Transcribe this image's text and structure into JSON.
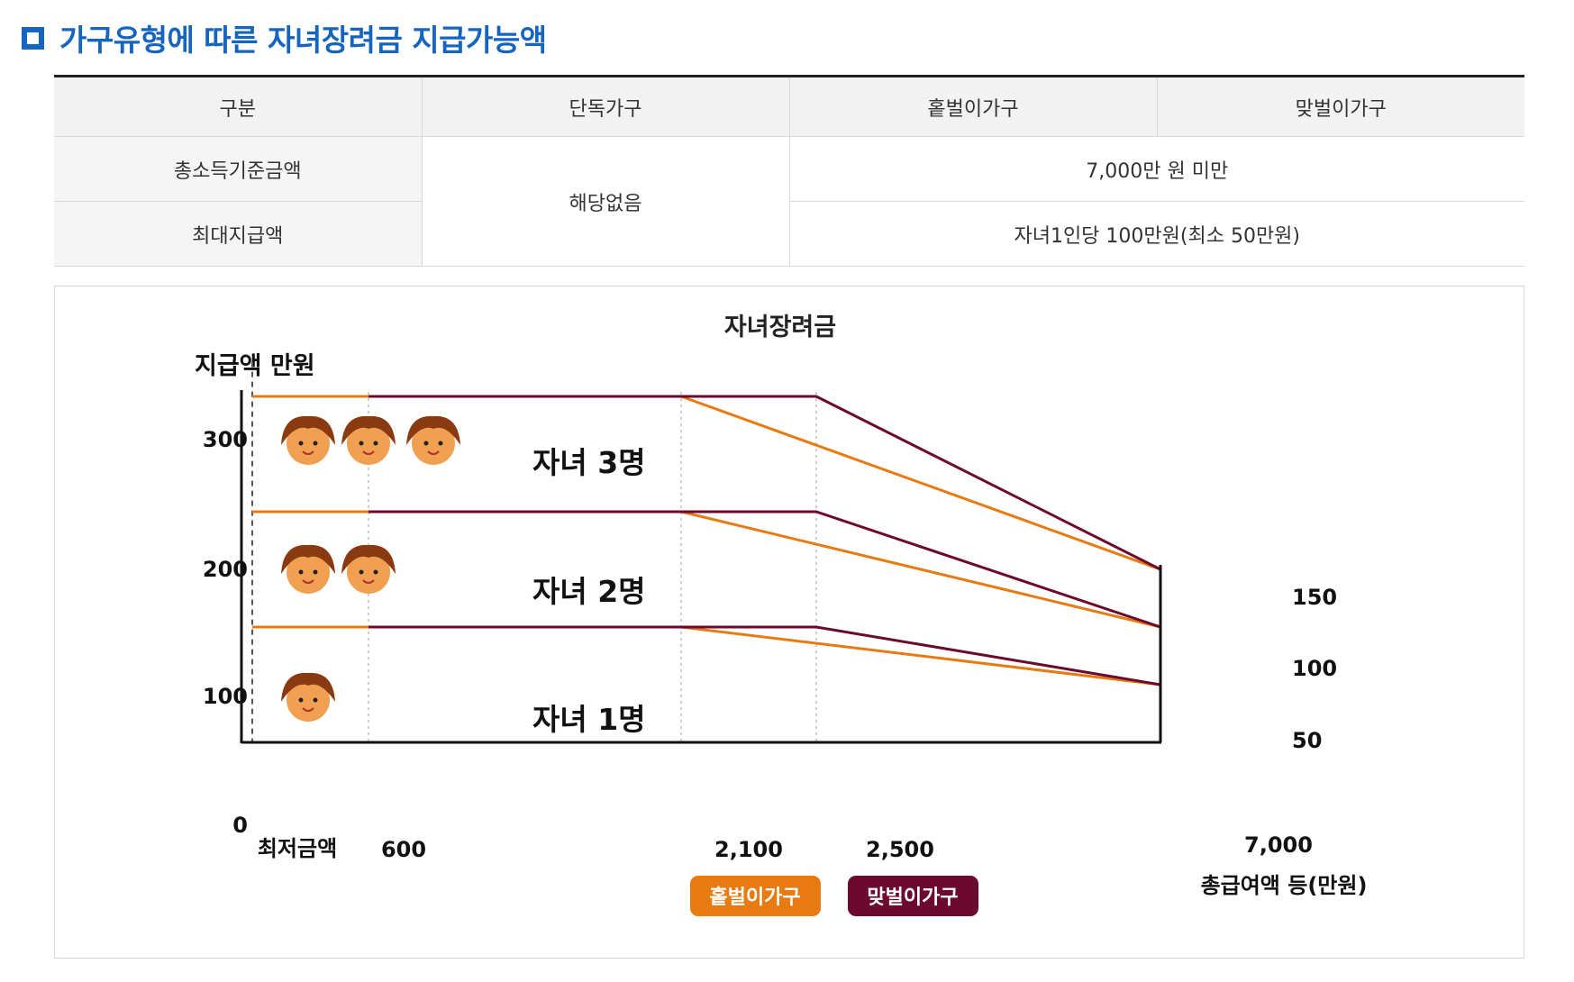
{
  "heading": {
    "title": "가구유형에 따른 자녀장려금 지급가능액"
  },
  "table": {
    "headers": [
      "구분",
      "단독가구",
      "홑벌이가구",
      "맞벌이가구"
    ],
    "rows": [
      {
        "label": "총소득기준금액",
        "value": "7,000만 원 미만"
      },
      {
        "label": "최대지급액",
        "value": "자녀1인당 100만원(최소 50만원)"
      }
    ],
    "single_household_value": "해당없음"
  },
  "chart": {
    "title": "자녀장려금",
    "y_axis_label": "지급액 만원",
    "x_axis_label": "총급여액 등(만원)",
    "y_ticks": [
      "300",
      "200",
      "100",
      "0"
    ],
    "x_ticks": [
      "최저금액",
      "600",
      "2,100",
      "2,500",
      "7,000"
    ],
    "right_ticks": [
      "150",
      "100",
      "50"
    ],
    "child_labels": [
      "자녀 3명",
      "자녀 2명",
      "자녀 1명"
    ],
    "legend": [
      {
        "label": "홑벌이가구",
        "color": "#e87a12"
      },
      {
        "label": "맞벌이가구",
        "color": "#6b0a2e"
      }
    ],
    "colors": {
      "single_income": "#e87a12",
      "dual_income": "#6b0a2e",
      "face": "#f0a050",
      "hair": "#8a3a10"
    }
  },
  "chart_data": {
    "type": "line",
    "title": "자녀장려금",
    "xlabel": "총급여액 등(만원)",
    "ylabel": "지급액 만원",
    "ylim": [
      0,
      300
    ],
    "series": [
      {
        "name": "홑벌이가구",
        "children": 3,
        "x": [
          0,
          2100,
          7000
        ],
        "y": [
          300,
          300,
          150
        ]
      },
      {
        "name": "맞벌이가구",
        "children": 3,
        "x": [
          600,
          2500,
          7000
        ],
        "y": [
          300,
          300,
          150
        ]
      },
      {
        "name": "홑벌이가구",
        "children": 2,
        "x": [
          0,
          2100,
          7000
        ],
        "y": [
          200,
          200,
          100
        ]
      },
      {
        "name": "맞벌이가구",
        "children": 2,
        "x": [
          600,
          2500,
          7000
        ],
        "y": [
          200,
          200,
          100
        ]
      },
      {
        "name": "홑벌이가구",
        "children": 1,
        "x": [
          0,
          2100,
          7000
        ],
        "y": [
          100,
          100,
          50
        ]
      },
      {
        "name": "맞벌이가구",
        "children": 1,
        "x": [
          600,
          2500,
          7000
        ],
        "y": [
          100,
          100,
          50
        ]
      }
    ]
  }
}
